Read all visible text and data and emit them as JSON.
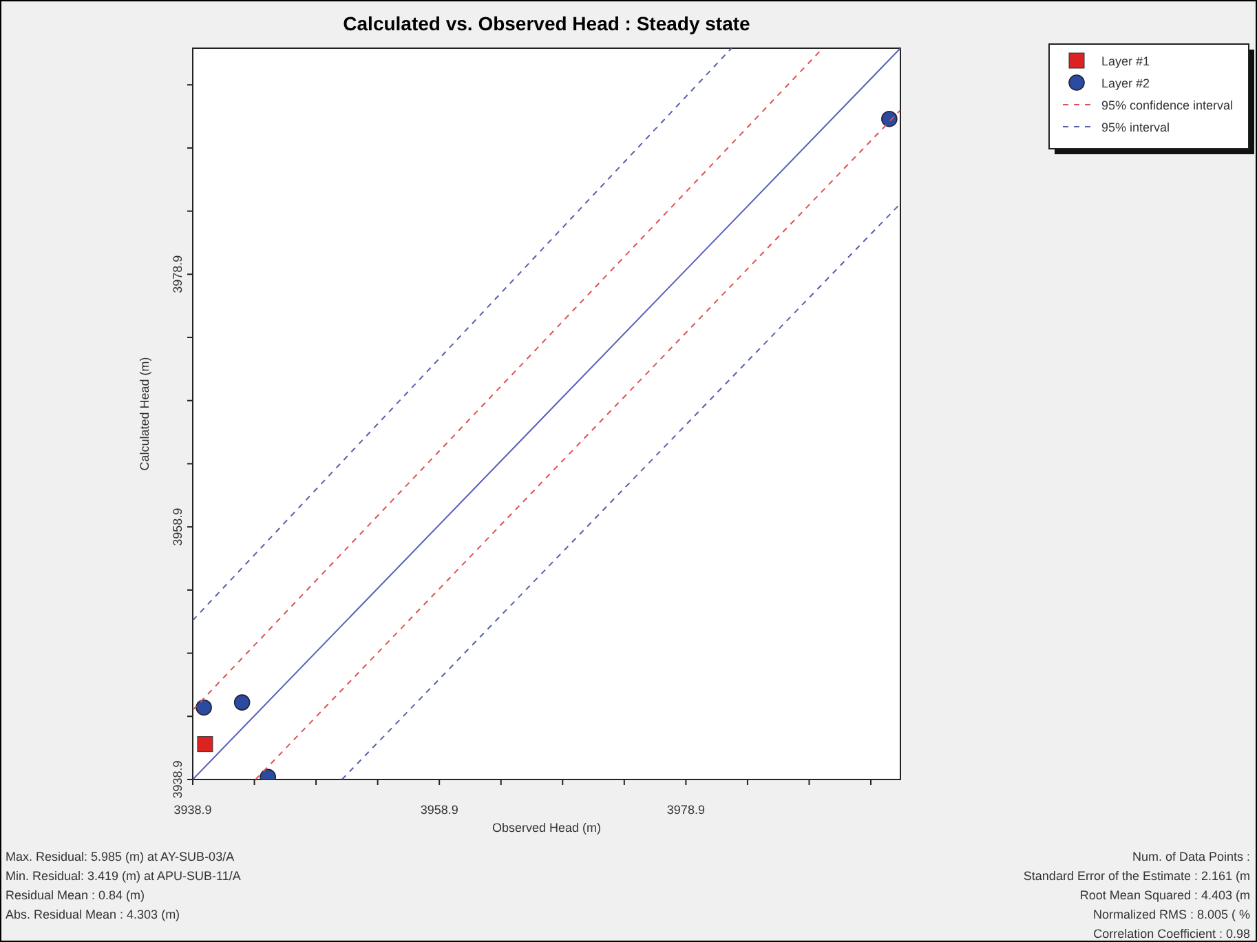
{
  "chart_data": {
    "type": "scatter",
    "title": "Calculated vs. Observed Head : Steady state",
    "xlabel": "Observed Head (m)",
    "ylabel": "Calculated Head (m)",
    "xlim": [
      3938.9,
      3996.3
    ],
    "ylim": [
      3938.9,
      3996.8
    ],
    "xticks": [
      3938.9,
      {
        "value": 3943.9,
        "label": null
      },
      {
        "value": 3948.9,
        "label": null
      },
      {
        "value": 3953.9,
        "label": null
      },
      3958.9,
      {
        "value": 3963.9,
        "label": null
      },
      {
        "value": 3968.9,
        "label": null
      },
      {
        "value": 3973.9,
        "label": null
      },
      3978.9,
      {
        "value": 3983.9,
        "label": null
      },
      {
        "value": 3988.9,
        "label": null
      },
      {
        "value": 3993.9,
        "label": null
      }
    ],
    "yticks": [
      3938.9,
      {
        "value": 3943.9,
        "label": null
      },
      {
        "value": 3948.9,
        "label": null
      },
      {
        "value": 3953.9,
        "label": null
      },
      3958.9,
      {
        "value": 3963.9,
        "label": null
      },
      {
        "value": 3968.9,
        "label": null
      },
      {
        "value": 3973.9,
        "label": null
      },
      3978.9,
      {
        "value": 3983.9,
        "label": null
      },
      {
        "value": 3988.9,
        "label": null
      },
      {
        "value": 3993.9,
        "label": null
      }
    ],
    "grid": false,
    "legend": "top right",
    "series": [
      {
        "name": "Layer #1",
        "marker": "square",
        "color": "#dd2222",
        "x": [
          3939.9
        ],
        "values": [
          3941.7
        ]
      },
      {
        "name": "Layer #2",
        "marker": "circle",
        "color": "#2b4ba0",
        "x": [
          3939.8,
          3942.9,
          3945.0,
          3995.4
        ],
        "values": [
          3944.6,
          3945.0,
          3939.1,
          3991.2
        ]
      },
      {
        "name": "95% confidence interval",
        "type": "line",
        "line_style": "dashed",
        "marker": "none",
        "color": "#e05050",
        "x": [
          3938.9,
          3990.0
        ],
        "values": [
          3944.4,
          3996.8
        ]
      },
      {
        "type": "line",
        "line_style": "dashed",
        "marker": "none",
        "color": "#e05050",
        "x": [
          3944.0,
          3996.3
        ],
        "values": [
          3938.9,
          3991.9
        ]
      },
      {
        "name": "95% interval",
        "type": "line",
        "line_style": "dashed",
        "marker": "none",
        "color": "#5560a8",
        "x": [
          3938.9,
          3982.6
        ],
        "values": [
          3951.5,
          3996.8
        ]
      },
      {
        "type": "line",
        "line_style": "dashed",
        "marker": "none",
        "color": "#5560a8",
        "x": [
          3951.0,
          3996.3
        ],
        "values": [
          3938.9,
          3984.5
        ]
      },
      {
        "type": "line",
        "line_style": "solid",
        "marker": "none",
        "color": "#5560b8",
        "x": [
          3938.9,
          3996.3
        ],
        "values": [
          3938.9,
          3996.8
        ]
      }
    ],
    "annotations": [
      "Max. Residual: 5.985 (m) at AY-SUB-03/A",
      "Min. Residual: 3.419 (m) at APU-SUB-11/A",
      "Residual Mean : 0.84 (m)",
      "Abs. Residual Mean : 4.303 (m)",
      "Num. of Data Points :",
      "Standard Error of the Estimate : 2.161 (m",
      "Root Mean Squared : 4.403 (m",
      "Normalized RMS : 8.005 ( %",
      "Correlation Coefficient : 0.98"
    ]
  }
}
